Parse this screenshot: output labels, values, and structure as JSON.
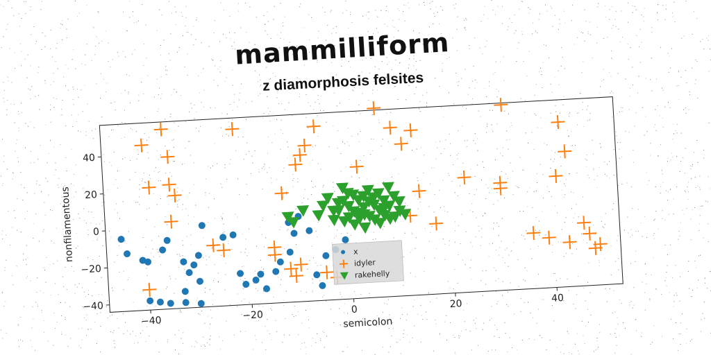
{
  "title": "mammilliform",
  "subtitle": "z diamorphosis felsites",
  "chart_data": {
    "type": "scatter",
    "xlabel": "semicolon",
    "ylabel": "nonfilamentous",
    "xlim": [
      -48,
      53
    ],
    "ylim": [
      -44,
      57
    ],
    "xticks": [
      -40,
      -20,
      0,
      20,
      40
    ],
    "yticks": [
      -40,
      -20,
      0,
      20,
      40
    ],
    "grid": false,
    "legend_position": "lower-center",
    "series": [
      {
        "name": "x",
        "marker": "circle",
        "color": "#1f77b4",
        "points": [
          [
            -45,
            -5
          ],
          [
            -44,
            -13
          ],
          [
            -41,
            -17
          ],
          [
            -40,
            -18
          ],
          [
            -37,
            -12
          ],
          [
            -36,
            -7
          ],
          [
            -33,
            -19
          ],
          [
            -32,
            -25
          ],
          [
            -31,
            -21
          ],
          [
            -30,
            -16
          ],
          [
            -29,
            0
          ],
          [
            -30,
            -30
          ],
          [
            -33,
            -35
          ],
          [
            -40,
            -39
          ],
          [
            -38,
            -40
          ],
          [
            -36,
            -41
          ],
          [
            -33,
            -41
          ],
          [
            -30,
            -42
          ],
          [
            -25,
            -7
          ],
          [
            -23,
            -6
          ],
          [
            -22,
            -27
          ],
          [
            -21,
            -33
          ],
          [
            -19,
            -31
          ],
          [
            -18,
            -28
          ],
          [
            -17,
            -36
          ],
          [
            -15,
            -27
          ],
          [
            -14,
            -22
          ],
          [
            -12,
            -17
          ],
          [
            -12,
            -1
          ],
          [
            -11,
            -7
          ],
          [
            -10,
            2
          ],
          [
            -8,
            -6
          ],
          [
            -7,
            -30
          ],
          [
            -6,
            -36
          ],
          [
            -5,
            -20
          ],
          [
            -3,
            -17
          ],
          [
            -1,
            -12
          ]
        ]
      },
      {
        "name": "idyler",
        "marker": "plus",
        "color": "#ff7f0e",
        "points": [
          [
            -40,
            45
          ],
          [
            -36,
            53
          ],
          [
            -35,
            38
          ],
          [
            -39,
            22
          ],
          [
            -35,
            23
          ],
          [
            -34,
            17
          ],
          [
            -35,
            3
          ],
          [
            -22,
            51
          ],
          [
            -13,
            15
          ],
          [
            -27,
            -11
          ],
          [
            -25,
            -14
          ],
          [
            -15,
            -14
          ],
          [
            -15,
            -18
          ],
          [
            -11,
            -30
          ],
          [
            -12,
            -26
          ],
          [
            -10,
            -24
          ],
          [
            -5,
            -29
          ],
          [
            -3,
            -32
          ],
          [
            -40,
            -33
          ],
          [
            -9,
            35
          ],
          [
            -8,
            40
          ],
          [
            -10,
            30
          ],
          [
            -6,
            50
          ],
          [
            2,
            27
          ],
          [
            6,
            58
          ],
          [
            9,
            47
          ],
          [
            11,
            38
          ],
          [
            13,
            45
          ],
          [
            14,
            12
          ],
          [
            12,
            -1
          ],
          [
            17,
            -6
          ],
          [
            23,
            18
          ],
          [
            31,
            56
          ],
          [
            30,
            14
          ],
          [
            30,
            11
          ],
          [
            41,
            16
          ],
          [
            42,
            45
          ],
          [
            43,
            29
          ],
          [
            36,
            -14
          ],
          [
            39,
            -17
          ],
          [
            43,
            -20
          ],
          [
            46,
            -10
          ],
          [
            47,
            -16
          ],
          [
            48,
            -24
          ],
          [
            49,
            -22
          ]
        ]
      },
      {
        "name": "rakehelly",
        "marker": "triangle-down",
        "color": "#2ca02c",
        "points": [
          [
            -11,
            -1
          ],
          [
            -12,
            2
          ],
          [
            -9,
            5
          ],
          [
            -6,
            2
          ],
          [
            -4,
            11
          ],
          [
            -3,
            4
          ],
          [
            -1,
            16
          ],
          [
            -2,
            8
          ],
          [
            1,
            12
          ],
          [
            0,
            6
          ],
          [
            1,
            3
          ],
          [
            2,
            9
          ],
          [
            3,
            1
          ],
          [
            4,
            8
          ],
          [
            4,
            14
          ],
          [
            5,
            6
          ],
          [
            5,
            -2
          ],
          [
            6,
            12
          ],
          [
            6,
            3
          ],
          [
            7,
            8
          ],
          [
            7,
            0
          ],
          [
            8,
            15
          ],
          [
            8,
            5
          ],
          [
            9,
            10
          ],
          [
            9,
            -1
          ],
          [
            10,
            7
          ],
          [
            -1,
            -2
          ],
          [
            0,
            0
          ],
          [
            1,
            -4
          ],
          [
            2,
            2
          ],
          [
            3,
            -6
          ],
          [
            3,
            5
          ],
          [
            4,
            0
          ],
          [
            5,
            10
          ],
          [
            6,
            -4
          ],
          [
            7,
            4
          ],
          [
            8,
            -2
          ],
          [
            -2,
            4
          ],
          [
            -1,
            9
          ],
          [
            0,
            13
          ],
          [
            2,
            -1
          ],
          [
            3,
            11
          ],
          [
            10,
            2
          ],
          [
            11,
            0
          ],
          [
            -5,
            7
          ],
          [
            -3,
            -1
          ]
        ]
      }
    ]
  }
}
